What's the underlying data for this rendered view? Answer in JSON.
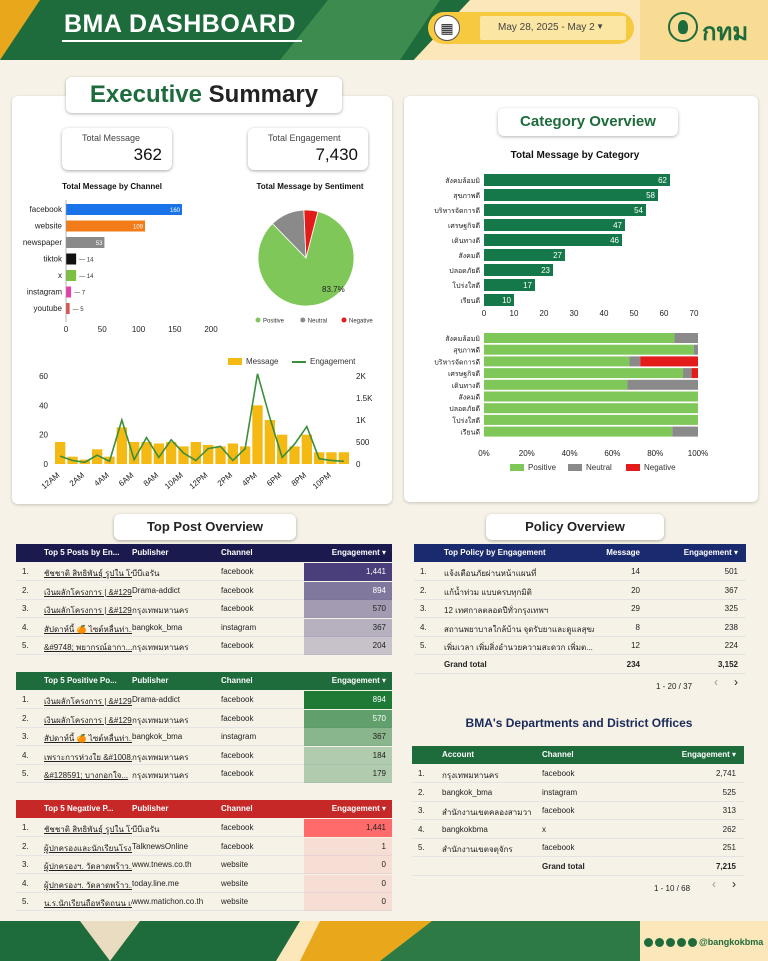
{
  "header": {
    "title": "BMA DASHBOARD",
    "date_range": "May 28, 2025 - May 2",
    "logo_text": "กทม"
  },
  "exec": {
    "title_a": "Executive",
    "title_b": "Summary",
    "total_message_label": "Total Message",
    "total_message": "362",
    "total_engagement_label": "Total Engagement",
    "total_engagement": "7,430"
  },
  "channel_chart": {
    "title": "Total Message by Channel",
    "categories": [
      "facebook",
      "website",
      "newspaper",
      "tiktok",
      "x",
      "instagram",
      "youtube"
    ],
    "values": [
      160,
      109,
      53,
      14,
      14,
      7,
      5
    ],
    "colors": [
      "#1a73e8",
      "#f27c1a",
      "#8a8a8a",
      "#111111",
      "#7cc142",
      "#e63fa9",
      "#d9534f"
    ],
    "ticks": [
      "0",
      "50",
      "100",
      "150",
      "200"
    ]
  },
  "sentiment_chart": {
    "title": "Total Message by Sentiment",
    "slices": [
      {
        "name": "Positive",
        "pct": 83.7,
        "color": "#80c75a"
      },
      {
        "name": "Neutral",
        "pct": 11.6,
        "color": "#8a8a8a"
      },
      {
        "name": "Negative",
        "pct": 4.7,
        "color": "#e31b1b"
      }
    ],
    "label": "83.7%"
  },
  "hourly_chart": {
    "legend": [
      "Message",
      "Engagement"
    ],
    "x_ticks": [
      "12AM",
      "2AM",
      "4AM",
      "6AM",
      "8AM",
      "10AM",
      "12PM",
      "2PM",
      "4PM",
      "6PM",
      "8PM",
      "10PM"
    ],
    "y_left": [
      "0",
      "20",
      "40",
      "60"
    ],
    "y_right": [
      "0",
      "500",
      "1K",
      "1.5K",
      "2K"
    ],
    "messages": [
      15,
      5,
      3,
      10,
      5,
      25,
      15,
      15,
      14,
      15,
      12,
      15,
      13,
      12,
      14,
      12,
      40,
      30,
      20,
      12,
      20,
      8,
      8,
      8
    ],
    "engagement": [
      180,
      80,
      40,
      200,
      60,
      1000,
      100,
      600,
      150,
      550,
      250,
      80,
      350,
      400,
      80,
      350,
      2050,
      1050,
      150,
      450,
      850,
      120,
      80,
      60
    ]
  },
  "category": {
    "title": "Category Overview",
    "chart_title": "Total Message by Category",
    "categories": [
      "สังคมล้อมมิ",
      "สุขภาพดี",
      "บริหารจัดการดี",
      "เศรษฐกิจดี",
      "เดินทางดี",
      "สังคมดี",
      "ปลอดภัยดี",
      "โปร่งใสดี",
      "เรียนดี"
    ],
    "values": [
      62,
      58,
      54,
      47,
      46,
      27,
      23,
      17,
      10
    ],
    "ticks": [
      "0",
      "10",
      "20",
      "30",
      "40",
      "50",
      "60",
      "70"
    ],
    "pos_pct": [
      89,
      98,
      68,
      93,
      67,
      100,
      100,
      100,
      88
    ],
    "neu_pct": [
      11,
      2,
      5,
      4,
      33,
      0,
      0,
      0,
      12
    ],
    "neg_pct": [
      0,
      0,
      27,
      3,
      0,
      0,
      0,
      0,
      0
    ],
    "pct_ticks": [
      "0%",
      "20%",
      "40%",
      "60%",
      "80%",
      "100%"
    ],
    "legend": [
      "Positive",
      "Neutral",
      "Negative"
    ]
  },
  "top_post": {
    "title": "Top Post Overview",
    "t1": {
      "headers": [
        "Top 5 Posts by En...",
        "Publisher",
        "Channel",
        "Engagement ▾"
      ],
      "rows": [
        [
          "1.",
          "ชัชชาติ สิทธิพันธุ์ รูปใน โรง...",
          "บีบีเอรัน",
          "facebook",
          "1,441"
        ],
        [
          "2.",
          "เงินผลักโครงการ | &#1294...",
          "Drama-addict",
          "facebook",
          "894"
        ],
        [
          "3.",
          "เงินผลักโครงการ | &#1294...",
          "กรุงเทพมหานคร",
          "facebook",
          "570"
        ],
        [
          "4.",
          "สัปดาห์นี้ 🍊 ไซต์หลื่นท่า...",
          "bangkok_bma",
          "instagram",
          "367"
        ],
        [
          "5.",
          "&#9748; พยากรณ์อากา...",
          "กรุงเทพมหานคร",
          "facebook",
          "204"
        ]
      ]
    },
    "t2": {
      "headers": [
        "Top 5 Positive Po...",
        "Publisher",
        "Channel",
        "Engagement ▾"
      ],
      "rows": [
        [
          "1.",
          "เงินผลักโครงการ | &#1294...",
          "Drama-addict",
          "facebook",
          "894"
        ],
        [
          "2.",
          "เงินผลักโครงการ | &#1294...",
          "กรุงเทพมหานคร",
          "facebook",
          "570"
        ],
        [
          "3.",
          "สัปดาห์นี้ 🍊 ไซต์หลื่นท่า...",
          "bangkok_bma",
          "instagram",
          "367"
        ],
        [
          "4.",
          "เพราะการห่วงใย &#1008...",
          "กรุงเทพมหานคร",
          "facebook",
          "184"
        ],
        [
          "5.",
          "&#128591; บางกอกใจ...",
          "กรุงเทพมหานคร",
          "facebook",
          "179"
        ]
      ]
    },
    "t3": {
      "headers": [
        "Top 5 Negative P...",
        "Publisher",
        "Channel",
        "Engagement ▾"
      ],
      "rows": [
        [
          "1.",
          "ชัชชาติ สิทธิพันธุ์ รูปใน โรง...",
          "บีบีเอรัน",
          "facebook",
          "1,441"
        ],
        [
          "2.",
          "ผู้ปกครองและนักเรียนโรง...",
          "TalknewsOnline",
          "facebook",
          "1"
        ],
        [
          "3.",
          "ผู้ปกครองฯ. วัดลาดพร้าว...",
          "www.tnews.co.th",
          "website",
          "0"
        ],
        [
          "4.",
          "ผู้ปกครองฯ. วัดลาดพร้าว...",
          "today.line.me",
          "website",
          "0"
        ],
        [
          "5.",
          "น.ร.นักเรียนถือหรีดถนน เขต...",
          "www.matichon.co.th",
          "website",
          "0"
        ]
      ]
    }
  },
  "policy": {
    "title": "Policy Overview",
    "headers": [
      "Top Policy by Engagement",
      "Message",
      "Engagement ▾"
    ],
    "rows": [
      [
        "1.",
        "แจ้งเตือนภัยผ่านหน้าแผนที่",
        "14",
        "501"
      ],
      [
        "2.",
        "แก้น้ำท่วม แบบครบทุกมิติ",
        "20",
        "367"
      ],
      [
        "3.",
        "12 เทศกาลตลอดปีทั่วกรุงเทพฯ",
        "29",
        "325"
      ],
      [
        "4.",
        "สถานพยาบาลใกล้บ้าน จุดรับยาและดูแลสุขภาพ...",
        "8",
        "238"
      ],
      [
        "5.",
        "เพิ่มเวลา เพิ่มสิ่งอำนวยความสะดวก เพิ่มต...",
        "12",
        "224"
      ]
    ],
    "grand_total_label": "Grand total",
    "grand_total": [
      "234",
      "3,152"
    ],
    "pager": "1 - 20 / 37"
  },
  "departments": {
    "title": "BMA's Departments and District Offices",
    "headers": [
      "Account",
      "Channel",
      "Engagement ▾"
    ],
    "rows": [
      [
        "1.",
        "กรุงเทพมหานคร",
        "facebook",
        "2,741"
      ],
      [
        "2.",
        "bangkok_bma",
        "instagram",
        "525"
      ],
      [
        "3.",
        "สำนักงานเขตคลองสามวา",
        "facebook",
        "313"
      ],
      [
        "4.",
        "bangkokbma",
        "x",
        "262"
      ],
      [
        "5.",
        "สำนักงานเขตจตุจักร",
        "facebook",
        "251"
      ]
    ],
    "grand_total_label": "Grand total",
    "grand_total": "7,215",
    "pager": "1 - 10 / 68"
  },
  "footer": {
    "handle": "@bangkokbma"
  }
}
